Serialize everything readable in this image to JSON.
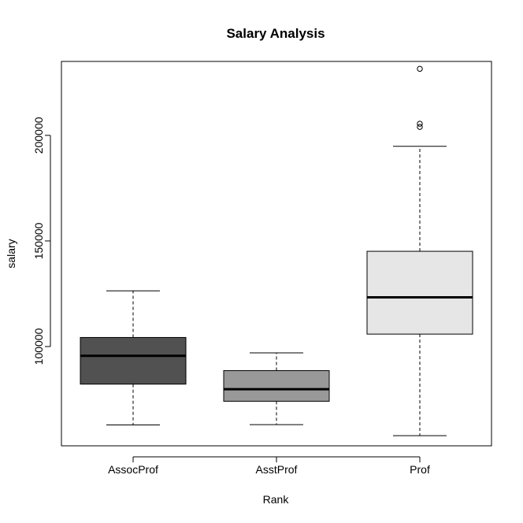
{
  "chart_data": {
    "type": "box",
    "title": "Salary Analysis",
    "xlabel": "Rank",
    "ylabel": "salary",
    "categories": [
      "AssocProf",
      "AsstProf",
      "Prof"
    ],
    "ylim": [
      53000,
      235000
    ],
    "yticks": [
      100000,
      150000,
      200000
    ],
    "ytick_labels": [
      "100000",
      "150000",
      "200000"
    ],
    "boxes": [
      {
        "category": "AssocProf",
        "fill": "#515151",
        "whisker_low": 62900,
        "q1": 82200,
        "median": 95600,
        "q3": 104300,
        "whisker_high": 126400,
        "outliers": []
      },
      {
        "category": "AsstProf",
        "fill": "#999999",
        "whisker_low": 63000,
        "q1": 74100,
        "median": 79800,
        "q3": 88600,
        "whisker_high": 97000,
        "outliers": []
      },
      {
        "category": "Prof",
        "fill": "#e6e6e6",
        "whisker_low": 57800,
        "q1": 105900,
        "median": 123300,
        "q3": 145100,
        "whisker_high": 194800,
        "outliers": [
          204000,
          205500,
          231500
        ]
      }
    ]
  }
}
